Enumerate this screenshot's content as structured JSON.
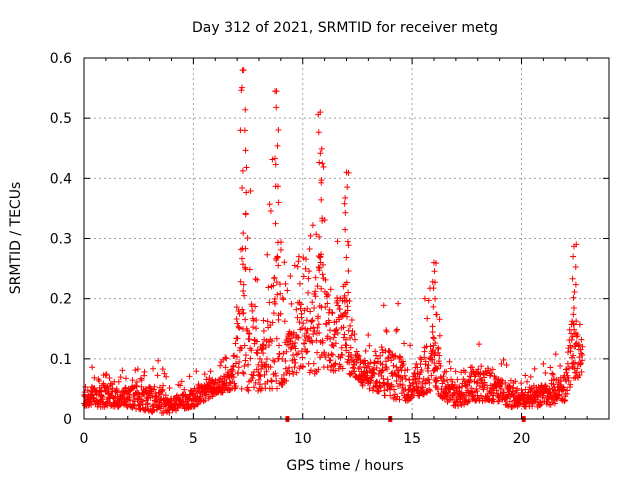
{
  "chart_data": {
    "type": "scatter",
    "title": "Day 312 of 2021, SRMTID for receiver metg",
    "xlabel": "GPS time / hours",
    "ylabel": "SRMTID / TECUs",
    "xlim": [
      0,
      24
    ],
    "ylim": [
      0,
      0.6
    ],
    "xticks": [
      0,
      5,
      10,
      15,
      20
    ],
    "yticks": [
      0,
      0.1,
      0.2,
      0.3,
      0.4,
      0.5,
      0.6
    ],
    "xtick_labels": [
      "0",
      "5",
      "10",
      "15",
      "20"
    ],
    "ytick_labels": [
      "0",
      "0.1",
      "0.2",
      "0.3",
      "0.4",
      "0.5",
      "0.6"
    ],
    "grid": true,
    "marker": "+",
    "color": "#ff0000",
    "x_range_of_data": [
      0,
      22.8
    ],
    "envelope": [
      {
        "x": 0.0,
        "low": 0.02,
        "high": 0.06
      },
      {
        "x": 0.7,
        "low": 0.02,
        "high": 0.11
      },
      {
        "x": 1.5,
        "low": 0.02,
        "high": 0.08
      },
      {
        "x": 2.0,
        "low": 0.02,
        "high": 0.09
      },
      {
        "x": 3.3,
        "low": 0.01,
        "high": 0.11
      },
      {
        "x": 4.0,
        "low": 0.01,
        "high": 0.06
      },
      {
        "x": 5.0,
        "low": 0.02,
        "high": 0.08
      },
      {
        "x": 6.0,
        "low": 0.04,
        "high": 0.09
      },
      {
        "x": 6.8,
        "low": 0.05,
        "high": 0.12
      },
      {
        "x": 7.2,
        "low": 0.05,
        "high": 0.58
      },
      {
        "x": 7.7,
        "low": 0.04,
        "high": 0.35
      },
      {
        "x": 8.2,
        "low": 0.05,
        "high": 0.2
      },
      {
        "x": 8.8,
        "low": 0.05,
        "high": 0.55
      },
      {
        "x": 9.3,
        "low": 0.06,
        "high": 0.22
      },
      {
        "x": 9.8,
        "low": 0.08,
        "high": 0.32
      },
      {
        "x": 10.3,
        "low": 0.07,
        "high": 0.3
      },
      {
        "x": 10.8,
        "low": 0.08,
        "high": 0.51
      },
      {
        "x": 11.3,
        "low": 0.08,
        "high": 0.28
      },
      {
        "x": 12.0,
        "low": 0.08,
        "high": 0.41
      },
      {
        "x": 12.5,
        "low": 0.06,
        "high": 0.16
      },
      {
        "x": 13.0,
        "low": 0.05,
        "high": 0.14
      },
      {
        "x": 13.7,
        "low": 0.04,
        "high": 0.19
      },
      {
        "x": 14.3,
        "low": 0.03,
        "high": 0.2
      },
      {
        "x": 15.0,
        "low": 0.03,
        "high": 0.12
      },
      {
        "x": 16.0,
        "low": 0.05,
        "high": 0.26
      },
      {
        "x": 16.5,
        "low": 0.03,
        "high": 0.12
      },
      {
        "x": 17.0,
        "low": 0.02,
        "high": 0.08
      },
      {
        "x": 18.0,
        "low": 0.03,
        "high": 0.15
      },
      {
        "x": 18.6,
        "low": 0.03,
        "high": 0.13
      },
      {
        "x": 19.5,
        "low": 0.02,
        "high": 0.09
      },
      {
        "x": 20.0,
        "low": 0.02,
        "high": 0.08
      },
      {
        "x": 21.0,
        "low": 0.02,
        "high": 0.1
      },
      {
        "x": 22.0,
        "low": 0.03,
        "high": 0.12
      },
      {
        "x": 22.3,
        "low": 0.05,
        "high": 0.29
      },
      {
        "x": 22.8,
        "low": 0.08,
        "high": 0.26
      }
    ],
    "peaks": [
      {
        "x": 7.3,
        "y": 0.58
      },
      {
        "x": 8.8,
        "y": 0.545
      },
      {
        "x": 10.8,
        "y": 0.51
      },
      {
        "x": 12.0,
        "y": 0.41
      },
      {
        "x": 16.0,
        "y": 0.26
      },
      {
        "x": 22.4,
        "y": 0.287
      }
    ],
    "zero_value_markers_x": [
      9.3,
      14.0,
      20.1
    ]
  }
}
